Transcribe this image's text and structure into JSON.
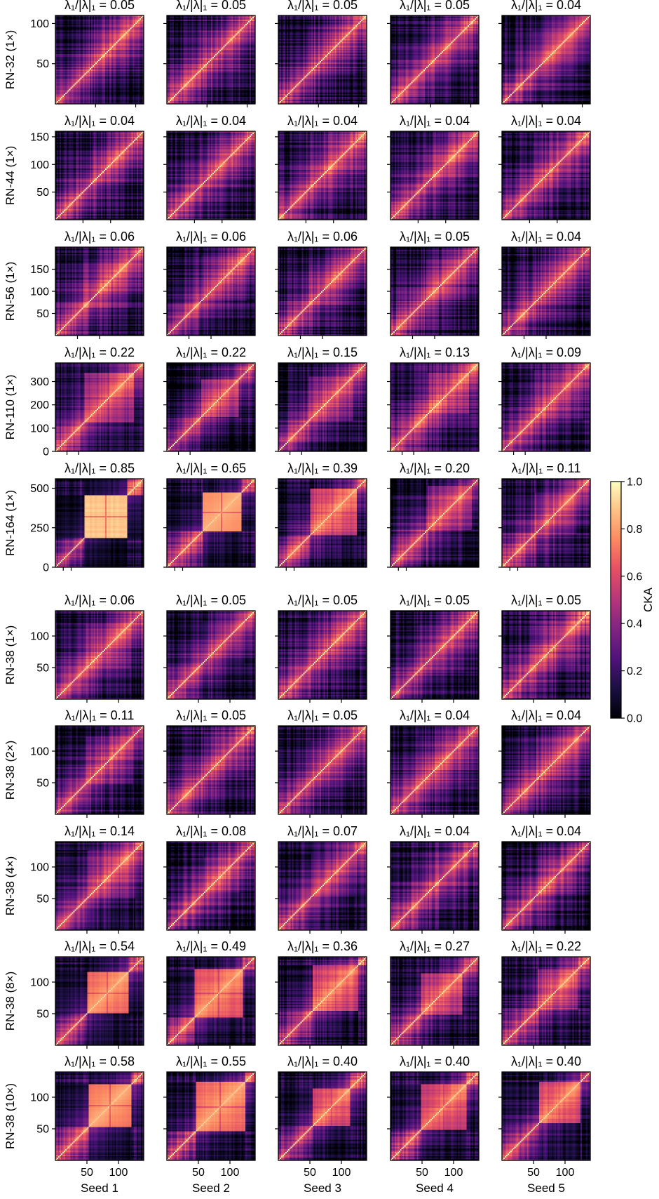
{
  "chart_data": {
    "type": "heatmap",
    "title": "",
    "value_label": "CKA",
    "colormap": "magma",
    "colorbar": {
      "range": [
        0.0,
        1.0
      ],
      "ticks": [
        "0.0",
        "0.2",
        "0.4",
        "0.6",
        "0.8",
        "1.0"
      ]
    },
    "title_prefix": "λ₁/|λ|₁ = ",
    "columns": [
      "Seed 1",
      "Seed 2",
      "Seed 3",
      "Seed 4",
      "Seed 5"
    ],
    "x_ticks": [
      "50",
      "100"
    ],
    "rows": [
      {
        "label": "RN-32 (1×)",
        "layers": 110,
        "y_ticks": [
          "50",
          "100"
        ],
        "values": [
          "0.05",
          "0.05",
          "0.05",
          "0.05",
          "0.04"
        ]
      },
      {
        "label": "RN-44 (1×)",
        "layers": 160,
        "y_ticks": [
          "50",
          "100",
          "150"
        ],
        "values": [
          "0.04",
          "0.04",
          "0.04",
          "0.04",
          "0.04"
        ]
      },
      {
        "label": "RN-56 (1×)",
        "layers": 200,
        "y_ticks": [
          "50",
          "100",
          "150"
        ],
        "values": [
          "0.06",
          "0.06",
          "0.06",
          "0.05",
          "0.04"
        ]
      },
      {
        "label": "RN-110 (1×)",
        "layers": 380,
        "y_ticks": [
          "0",
          "100",
          "200",
          "300"
        ],
        "values": [
          "0.22",
          "0.22",
          "0.15",
          "0.13",
          "0.09"
        ]
      },
      {
        "label": "RN-164 (1×)",
        "layers": 560,
        "y_ticks": [
          "0",
          "250",
          "500"
        ],
        "values": [
          "0.85",
          "0.65",
          "0.39",
          "0.20",
          "0.11"
        ]
      },
      {
        "label": "RN-38 (1×)",
        "layers": 140,
        "y_ticks": [
          "50",
          "100"
        ],
        "values": [
          "0.06",
          "0.05",
          "0.05",
          "0.05",
          "0.05"
        ]
      },
      {
        "label": "RN-38 (2×)",
        "layers": 140,
        "y_ticks": [
          "50",
          "100"
        ],
        "values": [
          "0.11",
          "0.05",
          "0.05",
          "0.04",
          "0.04"
        ]
      },
      {
        "label": "RN-38 (4×)",
        "layers": 140,
        "y_ticks": [
          "50",
          "100"
        ],
        "values": [
          "0.14",
          "0.08",
          "0.07",
          "0.04",
          "0.04"
        ]
      },
      {
        "label": "RN-38 (8×)",
        "layers": 140,
        "y_ticks": [
          "50",
          "100"
        ],
        "values": [
          "0.54",
          "0.49",
          "0.36",
          "0.27",
          "0.22"
        ]
      },
      {
        "label": "RN-38 (10×)",
        "layers": 140,
        "y_ticks": [
          "50",
          "100"
        ],
        "values": [
          "0.58",
          "0.55",
          "0.40",
          "0.40",
          "0.40"
        ]
      }
    ]
  }
}
